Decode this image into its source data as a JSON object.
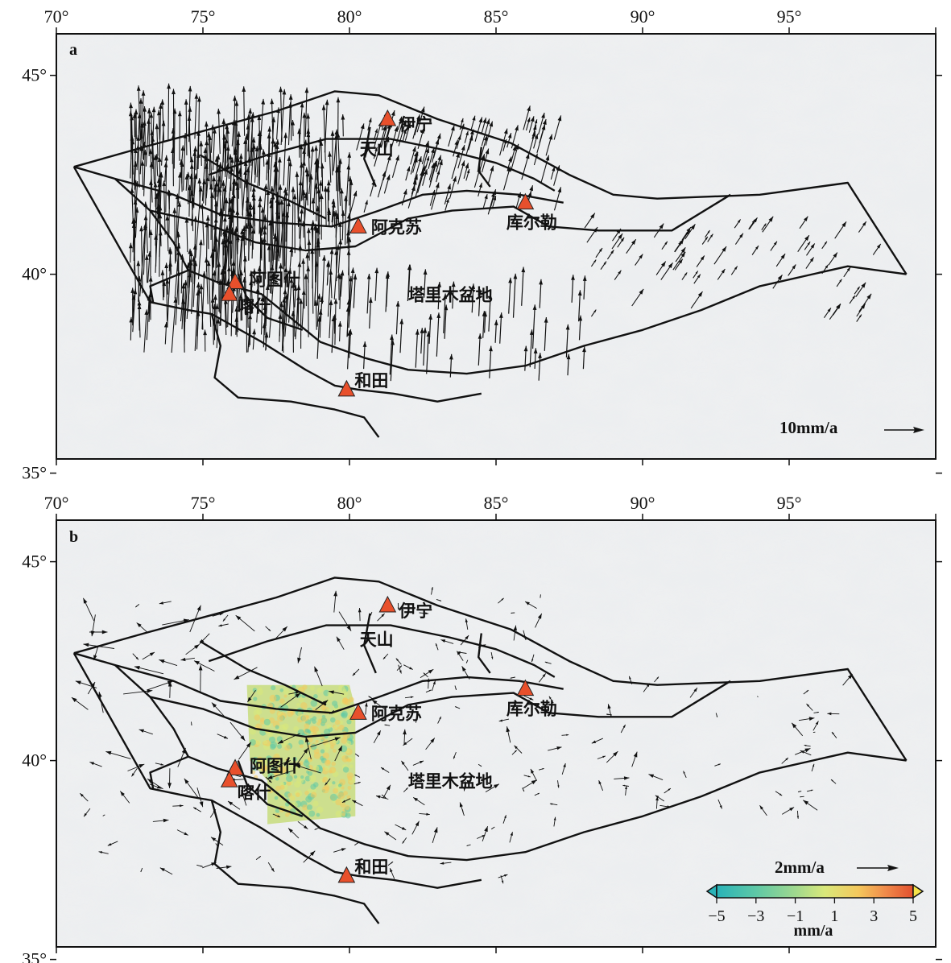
{
  "lon_ticks": [
    "70°",
    "75°",
    "80°",
    "85°",
    "90°",
    "95°"
  ],
  "lat_ticks": [
    "45°",
    "40°",
    "35°"
  ],
  "lon_values": [
    70,
    75,
    80,
    85,
    90,
    95
  ],
  "lat_values": [
    45,
    40,
    35
  ],
  "map_extent": {
    "lon_min": 70,
    "lon_max": 100,
    "lat_min": 35,
    "lat_max": 46
  },
  "panels": [
    {
      "letter": "a",
      "places": [
        {
          "name": "伊宁",
          "lon": 81.3,
          "lat": 43.9
        },
        {
          "name": "天山",
          "lon": 81.2,
          "lat": 43.0
        },
        {
          "name": "阿克苏",
          "lon": 80.3,
          "lat": 41.2
        },
        {
          "name": "库尔勒",
          "lon": 86.0,
          "lat": 41.8
        },
        {
          "name": "阿图什",
          "lon": 76.1,
          "lat": 39.8
        },
        {
          "name": "喀什",
          "lon": 75.9,
          "lat": 39.5
        },
        {
          "name": "塔里木盆地",
          "lon": 83.0,
          "lat": 39.5
        },
        {
          "name": "和田",
          "lon": 79.9,
          "lat": 37.1
        }
      ],
      "scale_label": "10mm/a"
    },
    {
      "letter": "b",
      "places": [
        {
          "name": "伊宁",
          "lon": 81.3,
          "lat": 43.9
        },
        {
          "name": "天山",
          "lon": 81.2,
          "lat": 42.9
        },
        {
          "name": "阿克苏",
          "lon": 80.3,
          "lat": 41.2
        },
        {
          "name": "库尔勒",
          "lon": 86.0,
          "lat": 41.8
        },
        {
          "name": "阿图什",
          "lon": 76.1,
          "lat": 39.8
        },
        {
          "name": "喀什",
          "lon": 75.9,
          "lat": 39.5
        },
        {
          "name": "塔里木盆地",
          "lon": 83.0,
          "lat": 39.5
        },
        {
          "name": "和田",
          "lon": 79.9,
          "lat": 37.1
        }
      ],
      "scale_label": "2mm/a",
      "colorbar": {
        "ticks": [
          "−5",
          "−3",
          "−1",
          "1",
          "3",
          "5"
        ],
        "unit": "mm/a",
        "range": [
          -5,
          5
        ],
        "colors": [
          "#2ab3b8",
          "#5ec8a6",
          "#9fd88e",
          "#d9e87a",
          "#f4c85c",
          "#f08a4a",
          "#e2502e"
        ]
      }
    }
  ],
  "colors": {
    "triangle": "#e8502c",
    "fault": "#111111",
    "insar": "#c8dd7a"
  }
}
